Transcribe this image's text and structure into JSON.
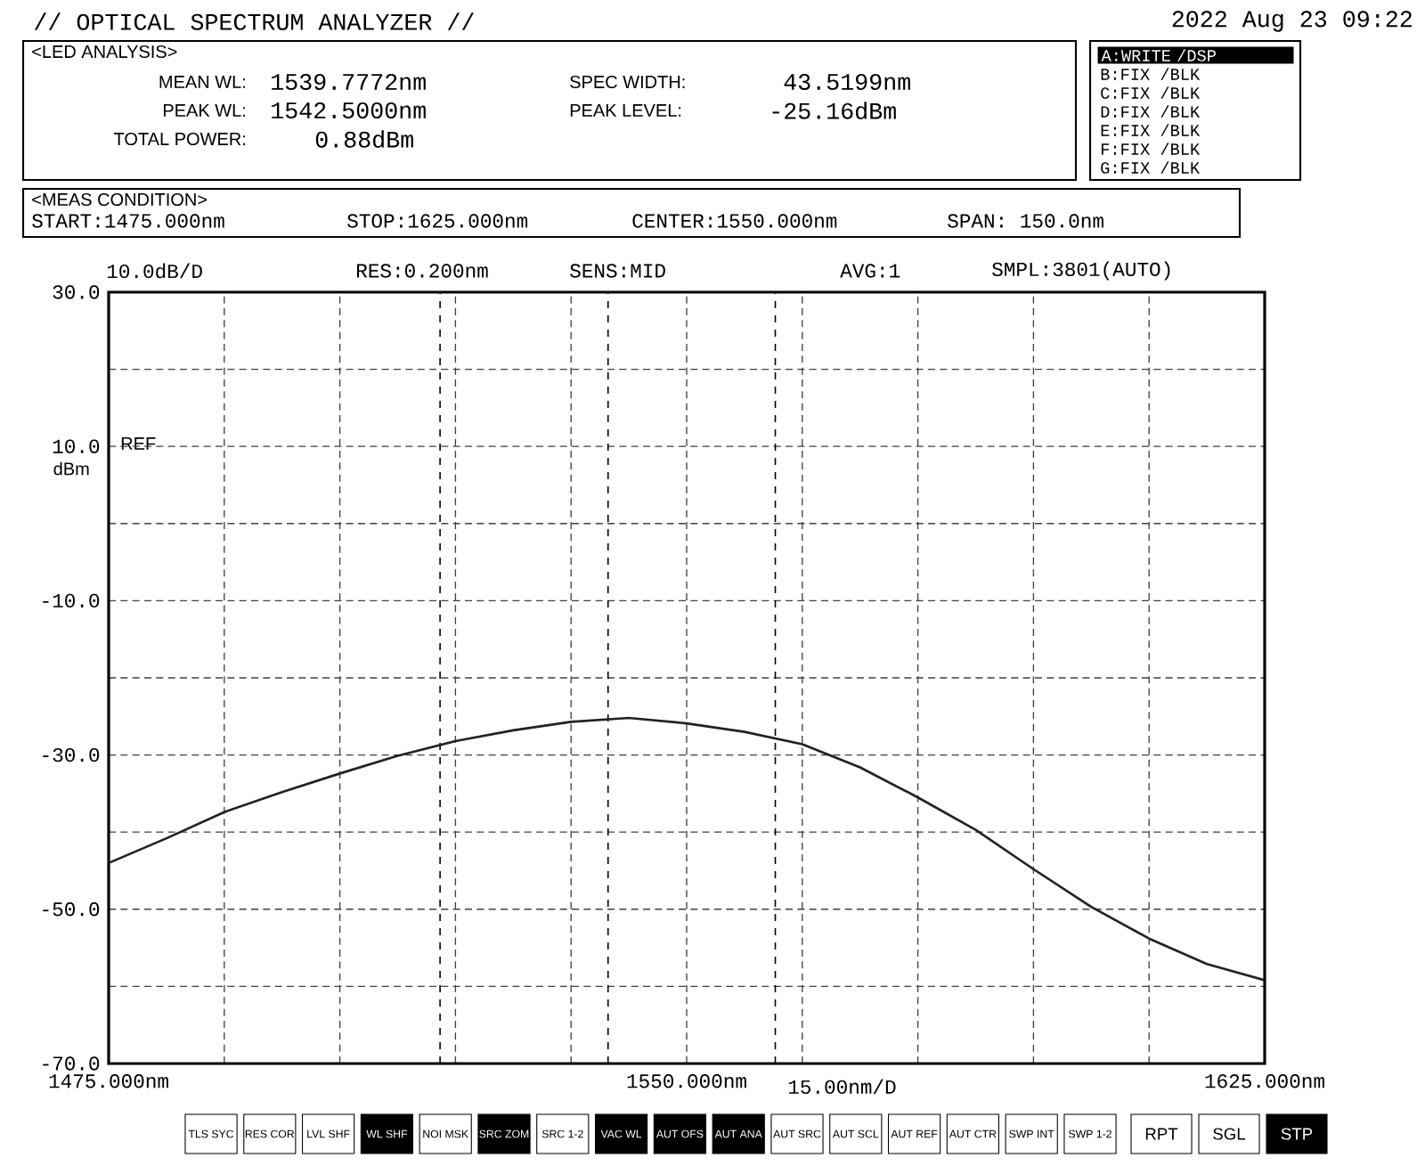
{
  "chart_data": {
    "type": "line",
    "title": "// OPTICAL SPECTRUM ANALYZER //",
    "annotations": [
      "2022 Aug 23 09:22",
      "<LED ANALYSIS>",
      "MEAN WL:",
      "1539.7772nm",
      "PEAK WL:",
      "1542.5000nm",
      "TOTAL POWER:",
      "0.88dBm",
      "SPEC WIDTH:",
      "43.5199nm",
      "PEAK LEVEL:",
      "-25.16dBm",
      "A:WRITE /DSP",
      "B:FIX /BLK",
      "C:FIX /BLK",
      "D:FIX /BLK",
      "E:FIX /BLK",
      "F:FIX /BLK",
      "G:FIX /BLK",
      "<MEAS CONDITION>",
      "START:1475.000nm",
      "STOP:1625.000nm",
      "CENTER:1550.000nm",
      "SPAN: 150.0nm",
      "10.0dB/D",
      "RES:0.200nm",
      "SENS:MID",
      "AVG:1",
      "SMPL:3801(AUTO)",
      "REF",
      "dBm",
      "TLS SYC",
      "RES COR",
      "LVL SHF",
      "WL SHF",
      "NOI MSK",
      "SRC ZOM",
      "SRC 1-2",
      "VAC WL",
      "AUT OFS",
      "AUT ANA",
      "AUT SRC",
      "AUT SCL",
      "AUT REF",
      "AUT CTR",
      "SWP INT",
      "SWP 1-2",
      "RPT",
      "SGL",
      "STP"
    ],
    "x": [
      1475,
      1482.5,
      1490,
      1497.5,
      1505,
      1512.5,
      1520,
      1527.5,
      1535,
      1542.5,
      1550,
      1557.5,
      1565,
      1572.5,
      1580,
      1587.5,
      1595,
      1602.5,
      1610,
      1617.5,
      1625
    ],
    "values": [
      -44.0,
      -40.8,
      -37.4,
      -34.8,
      -32.4,
      -30.1,
      -28.2,
      -26.8,
      -25.7,
      -25.2,
      -25.9,
      -27.0,
      -28.6,
      -31.6,
      -35.5,
      -39.7,
      -44.8,
      -49.7,
      -53.8,
      -57.1,
      -59.2
    ],
    "color": "#222222",
    "xlabel": "15.00nm/D",
    "xlim": [
      1475,
      1625
    ],
    "ylim": [
      -70,
      30
    ],
    "xticks": [
      {
        "value": 1475,
        "label": "1475.000nm"
      },
      {
        "value": 1490,
        "label": null
      },
      {
        "value": 1505,
        "label": null
      },
      {
        "value": 1520,
        "label": null
      },
      {
        "value": 1535,
        "label": null
      },
      {
        "value": 1550,
        "label": "1550.000nm"
      },
      {
        "value": 1565,
        "label": null
      },
      {
        "value": 1580,
        "label": null
      },
      {
        "value": 1595,
        "label": null
      },
      {
        "value": 1610,
        "label": null
      },
      {
        "value": 1625,
        "label": "1625.000nm"
      }
    ],
    "yticks": [
      {
        "value": 30,
        "label": "30.0"
      },
      {
        "value": 20,
        "label": null
      },
      {
        "value": 10,
        "label": "10.0"
      },
      {
        "value": 0,
        "label": null
      },
      {
        "value": -10,
        "label": "-10.0"
      },
      {
        "value": -20,
        "label": null
      },
      {
        "value": -30,
        "label": "-30.0"
      },
      {
        "value": -40,
        "label": null
      },
      {
        "value": -50,
        "label": "-50.0"
      },
      {
        "value": -60,
        "label": null
      },
      {
        "value": -70,
        "label": "-70.0"
      }
    ],
    "grid": true,
    "ref_lines": [
      {
        "axis": "x",
        "value": 1518.0,
        "line_style": "dashed"
      },
      {
        "axis": "x",
        "value": 1561.5,
        "line_style": "dashed"
      },
      {
        "axis": "x",
        "value": 1539.8,
        "line_style": "dashed"
      }
    ]
  }
}
